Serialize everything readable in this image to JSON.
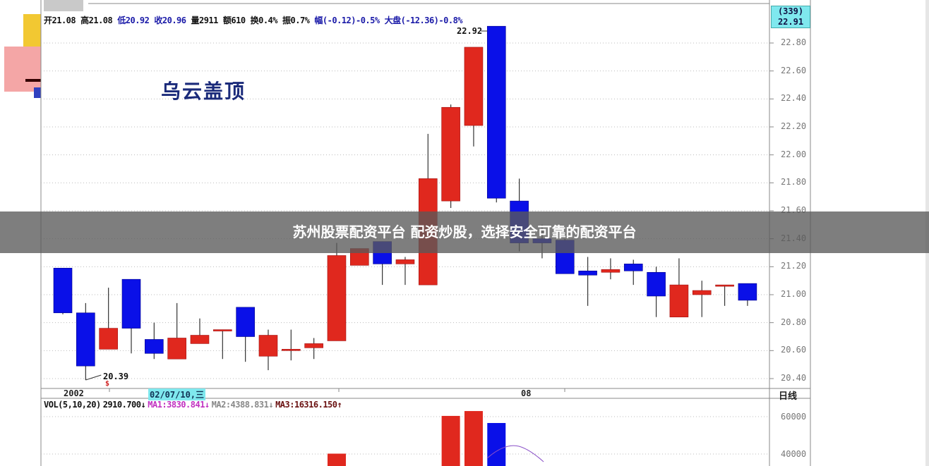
{
  "header": {
    "items": [
      {
        "text": "开21.08",
        "color": "#111111"
      },
      {
        "text": "高21.08",
        "color": "#111111"
      },
      {
        "text": "低20.92",
        "color": "#1a1aa8"
      },
      {
        "text": "收20.96",
        "color": "#1a1aa8"
      },
      {
        "text": "量2911",
        "color": "#111111"
      },
      {
        "text": "额610",
        "color": "#111111"
      },
      {
        "text": "换0.4%",
        "color": "#111111"
      },
      {
        "text": "振0.7%",
        "color": "#111111"
      },
      {
        "text": "幅(-0.12)-0.5%",
        "color": "#1a1aa8"
      },
      {
        "text": "大盘(-12.36)-0.8%",
        "color": "#1a1aa8"
      }
    ]
  },
  "annotation_title": "乌云盖顶",
  "current_box": {
    "line1": "(339)",
    "line2": "22.91"
  },
  "high_label": "22.92",
  "low_label": "20.39",
  "low_marker": "$",
  "date_labels": {
    "year": "2002",
    "cursor_date": "02/07/10,三",
    "month": "08",
    "period": "日线"
  },
  "volume_legend": [
    {
      "text": "VOL(5,10,20)",
      "color": "#111111"
    },
    {
      "text": "2910.700↓",
      "color": "#111111"
    },
    {
      "text": "MA1:3830.841↓",
      "color": "#c030c0"
    },
    {
      "text": "MA2:4388.831↓",
      "color": "#888888"
    },
    {
      "text": "MA3:16316.150↑",
      "color": "#6a1010"
    }
  ],
  "banner": "苏州股票配资平台 配资炒股，选择安全可靠的配资平台",
  "colors": {
    "up": "#e0281e",
    "down": "#0a10e8",
    "grid": "#bbbbbb",
    "ma_line": "#8a50c8"
  },
  "chart_data": {
    "type": "candlestick",
    "title": "乌云盖顶",
    "price_ticks": [
      "22.80",
      "22.60",
      "22.40",
      "22.20",
      "22.00",
      "21.80",
      "21.60",
      "21.40",
      "21.20",
      "21.00",
      "20.80",
      "20.60",
      "20.40"
    ],
    "ylim": [
      20.36,
      22.95
    ],
    "grid": true,
    "candles": [
      {
        "o": 21.19,
        "h": 21.19,
        "l": 20.86,
        "c": 20.87
      },
      {
        "o": 20.87,
        "h": 20.94,
        "l": 20.39,
        "c": 20.49
      },
      {
        "o": 20.61,
        "h": 21.05,
        "l": 20.61,
        "c": 20.76
      },
      {
        "o": 21.11,
        "h": 21.11,
        "l": 20.58,
        "c": 20.76
      },
      {
        "o": 20.68,
        "h": 20.8,
        "l": 20.54,
        "c": 20.58
      },
      {
        "o": 20.54,
        "h": 20.94,
        "l": 20.54,
        "c": 20.69
      },
      {
        "o": 20.65,
        "h": 20.83,
        "l": 20.65,
        "c": 20.71
      },
      {
        "o": 20.75,
        "h": 20.75,
        "l": 20.54,
        "c": 20.75
      },
      {
        "o": 20.91,
        "h": 20.91,
        "l": 20.52,
        "c": 20.7
      },
      {
        "o": 20.56,
        "h": 20.75,
        "l": 20.46,
        "c": 20.71
      },
      {
        "o": 20.61,
        "h": 20.75,
        "l": 20.53,
        "c": 20.61
      },
      {
        "o": 20.62,
        "h": 20.69,
        "l": 20.54,
        "c": 20.65
      },
      {
        "o": 20.67,
        "h": 21.37,
        "l": 20.67,
        "c": 21.28
      },
      {
        "o": 21.21,
        "h": 21.33,
        "l": 21.21,
        "c": 21.33
      },
      {
        "o": 21.38,
        "h": 21.38,
        "l": 21.07,
        "c": 21.22
      },
      {
        "o": 21.22,
        "h": 21.27,
        "l": 21.07,
        "c": 21.25
      },
      {
        "o": 21.07,
        "h": 22.15,
        "l": 21.07,
        "c": 21.83
      },
      {
        "o": 21.67,
        "h": 22.36,
        "l": 21.62,
        "c": 22.34
      },
      {
        "o": 22.21,
        "h": 22.77,
        "l": 22.06,
        "c": 22.77
      },
      {
        "o": 22.92,
        "h": 22.92,
        "l": 21.66,
        "c": 21.69
      },
      {
        "o": 21.67,
        "h": 21.83,
        "l": 21.31,
        "c": 21.37
      },
      {
        "o": 21.4,
        "h": 21.5,
        "l": 21.26,
        "c": 21.37
      },
      {
        "o": 21.39,
        "h": 21.4,
        "l": 21.15,
        "c": 21.15
      },
      {
        "o": 21.17,
        "h": 21.27,
        "l": 20.92,
        "c": 21.14
      },
      {
        "o": 21.16,
        "h": 21.26,
        "l": 21.11,
        "c": 21.18
      },
      {
        "o": 21.22,
        "h": 21.25,
        "l": 21.07,
        "c": 21.17
      },
      {
        "o": 21.16,
        "h": 21.2,
        "l": 20.84,
        "c": 20.99
      },
      {
        "o": 20.84,
        "h": 21.26,
        "l": 20.84,
        "c": 21.07
      },
      {
        "o": 21.0,
        "h": 21.1,
        "l": 20.84,
        "c": 21.03
      },
      {
        "o": 21.07,
        "h": 21.07,
        "l": 20.92,
        "c": 21.07
      },
      {
        "o": 21.08,
        "h": 21.08,
        "l": 20.92,
        "c": 20.96
      }
    ],
    "volume_ticks": [
      "60000",
      "40000"
    ],
    "volume_visible": [
      {
        "index": 12,
        "value": 40200
      },
      {
        "index": 17,
        "value": 60400
      },
      {
        "index": 18,
        "value": 63000
      },
      {
        "index": 19,
        "value": 56600
      }
    ]
  }
}
